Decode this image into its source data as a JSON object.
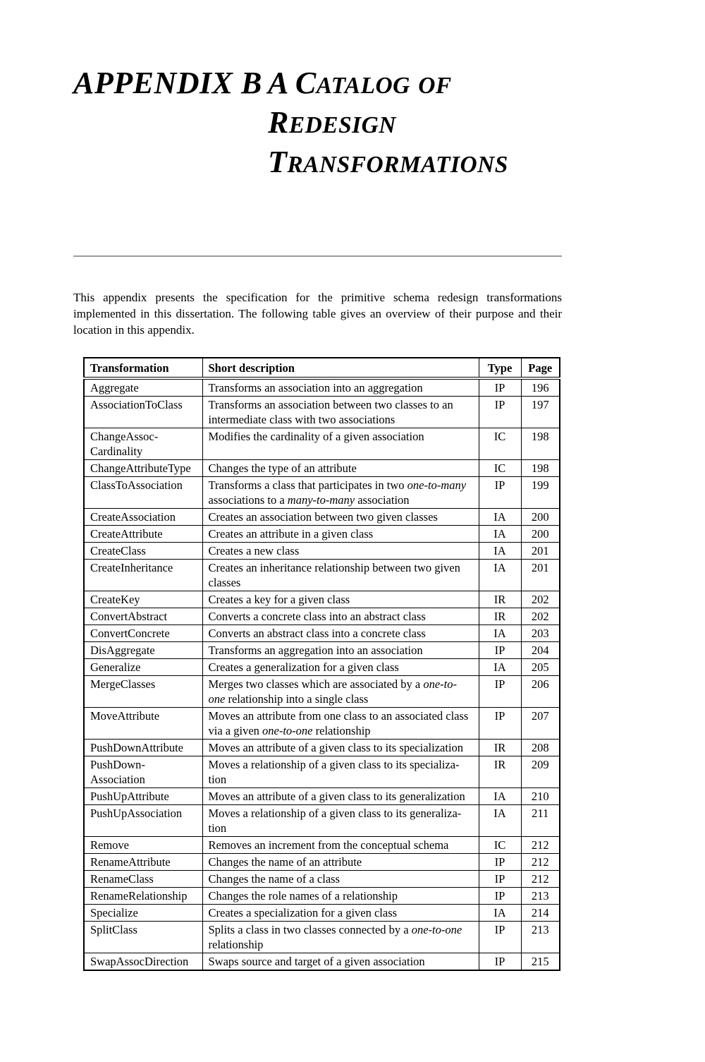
{
  "page": {
    "appendix_label": "APPENDIX B",
    "title_line1": "A Catalog of Redesign",
    "title_line2": "Transformations",
    "intro": "This appendix presents the specification for the primitive schema redesign transformations implemented in this dissertation. The following table gives an overview of their purpose and their location in this appendix."
  },
  "table": {
    "headers": [
      "Transformation",
      "Short description",
      "Type",
      "Page"
    ],
    "rows": [
      {
        "name": "Aggregate",
        "description": "Transforms an association into an aggregation",
        "type": "IP",
        "page": "196"
      },
      {
        "name": "AssociationToClass",
        "description": "Transforms an association between two classes to an\nintermediate class with two associations",
        "type": "IP",
        "page": "197"
      },
      {
        "name": "ChangeAssoc-\nCardinality",
        "description": "Modifies the cardinality of a given association",
        "type": "IC",
        "page": "198"
      },
      {
        "name": "ChangeAttributeType",
        "description": "Changes the type of an attribute",
        "type": "IC",
        "page": "198"
      },
      {
        "name": "ClassToAssociation",
        "description": "Transforms a class that participates in two *one-to-many*\nassociations to a *many-to-many* association",
        "type": "IP",
        "page": "199"
      },
      {
        "name": "CreateAssociation",
        "description": "Creates an association between two given classes",
        "type": "IA",
        "page": "200"
      },
      {
        "name": "CreateAttribute",
        "description": "Creates an attribute in a given class",
        "type": "IA",
        "page": "200"
      },
      {
        "name": "CreateClass",
        "description": "Creates a new class",
        "type": "IA",
        "page": "201"
      },
      {
        "name": "CreateInheritance",
        "description": "Creates an inheritance relationship between two given\nclasses",
        "type": "IA",
        "page": "201"
      },
      {
        "name": "CreateKey",
        "description": "Creates a key for a given class",
        "type": "IR",
        "page": "202"
      },
      {
        "name": "ConvertAbstract",
        "description": "Converts a concrete class into an abstract class",
        "type": "IR",
        "page": "202"
      },
      {
        "name": "ConvertConcrete",
        "description": "Converts an abstract class into a concrete class",
        "type": "IA",
        "page": "203"
      },
      {
        "name": "DisAggregate",
        "description": "Transforms an aggregation into an association",
        "type": "IP",
        "page": "204"
      },
      {
        "name": "Generalize",
        "description": "Creates a generalization for a given class",
        "type": "IA",
        "page": "205"
      },
      {
        "name": "MergeClasses",
        "description": "Merges two classes which are associated by a *one-to-*\n*one* relationship into a single class",
        "type": "IP",
        "page": "206"
      },
      {
        "name": "MoveAttribute",
        "description": "Moves an attribute from one class to an associated class\nvia a given *one-to-one* relationship",
        "type": "IP",
        "page": "207"
      },
      {
        "name": "PushDownAttribute",
        "description": "Moves an attribute of a given class to its specialization",
        "type": "IR",
        "page": "208"
      },
      {
        "name": "PushDown-\nAssociation",
        "description": "Moves a relationship of a given class to its specializa-\ntion",
        "type": "IR",
        "page": "209"
      },
      {
        "name": "PushUpAttribute",
        "description": "Moves an attribute of a given class to its generalization",
        "type": "IA",
        "page": "210"
      },
      {
        "name": "PushUpAssociation",
        "description": "Moves a relationship of a given class to its generaliza-\ntion",
        "type": "IA",
        "page": "211"
      },
      {
        "name": "Remove",
        "description": "Removes an increment from the conceptual schema",
        "type": "IC",
        "page": "212"
      },
      {
        "name": "RenameAttribute",
        "description": "Changes the name of an attribute",
        "type": "IP",
        "page": "212"
      },
      {
        "name": "RenameClass",
        "description": "Changes the name of a class",
        "type": "IP",
        "page": "212"
      },
      {
        "name": "RenameRelationship",
        "description": "Changes the role names of a relationship",
        "type": "IP",
        "page": "213"
      },
      {
        "name": "Specialize",
        "description": "Creates a specialization for a given class",
        "type": "IA",
        "page": "214"
      },
      {
        "name": "SplitClass",
        "description": "Splits a class in two classes connected by a *one-to-one*\nrelationship",
        "type": "IP",
        "page": "213"
      },
      {
        "name": "SwapAssocDirection",
        "description": "Swaps source and target of a given association",
        "type": "IP",
        "page": "215"
      }
    ]
  }
}
